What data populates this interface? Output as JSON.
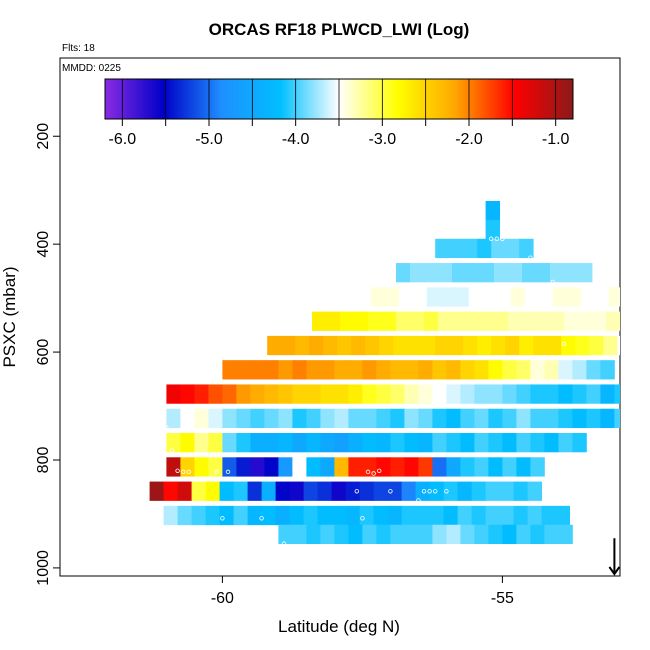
{
  "chart_data": {
    "type": "heatmap",
    "title": "ORCAS RF18 PLWCD_LWI (Log)",
    "annotations": {
      "flights": "Flts: 18",
      "date": "MMDD: 0225"
    },
    "xlabel": "Latitude (deg N)",
    "ylabel": "PSXC (mbar)",
    "xlim": [
      -62.9,
      -52.9
    ],
    "ylim": [
      1015,
      55
    ],
    "y_reversed": true,
    "x_ticks": [
      -60,
      -55
    ],
    "x_tick_labels": [
      "-60",
      "-55"
    ],
    "y_ticks": [
      200,
      400,
      600,
      800,
      1000
    ],
    "y_tick_labels": [
      "200",
      "400",
      "600",
      "800",
      "1000"
    ],
    "colorbar": {
      "range": [
        -6.2,
        -0.8
      ],
      "ticks": [
        -6.0,
        -5.0,
        -4.0,
        -3.0,
        -2.0,
        -1.0
      ],
      "tick_labels": [
        "-6.0",
        "-5.0",
        "-4.0",
        "-3.0",
        "-2.0",
        "-1.0"
      ],
      "colors": [
        "#8a2be2",
        "#0000c8",
        "#1e90ff",
        "#00bfff",
        "#ffffff",
        "#ffff00",
        "#ffa500",
        "#ff0000",
        "#8b1a1a"
      ]
    },
    "cell_size": {
      "dlat": 0.25,
      "dp": 35
    },
    "rows": [
      {
        "p": 320,
        "lat_start": -55.3,
        "values": [
          -4.3
        ]
      },
      {
        "p": 355,
        "lat_start": -55.3,
        "values": [
          -4.1
        ]
      },
      {
        "p": 390,
        "lat_start": -56.2,
        "values": [
          -4.0,
          -4.0,
          -4.0,
          -4.1,
          -3.9,
          -3.9,
          -4.0
        ]
      },
      {
        "p": 435,
        "lat_start": -56.9,
        "values": [
          -3.9,
          -3.8,
          -3.8,
          -3.8,
          -3.9,
          -3.9,
          -3.9,
          -3.8,
          -3.8,
          -3.9,
          -3.9,
          -3.8,
          -3.8,
          -3.8
        ]
      },
      {
        "p": 480,
        "lat_start": -57.6,
        "values": [
          -3.5,
          -3.4,
          -3.4,
          -3.5,
          -3.5,
          -3.6,
          -3.6,
          -3.6,
          -3.5,
          -3.5,
          -3.5,
          -3.4,
          -3.5,
          -3.5,
          -3.4,
          -3.4,
          -3.5,
          -3.5,
          -3.4
        ]
      },
      {
        "p": 525,
        "lat_start": -58.4,
        "values": [
          -2.7,
          -2.7,
          -2.8,
          -2.8,
          -2.9,
          -2.9,
          -3.1,
          -3.1,
          -3.0,
          -3.2,
          -3.2,
          -3.2,
          -3.2,
          -3.2,
          -3.3,
          -3.3,
          -3.3,
          -3.3,
          -3.4,
          -3.4,
          -3.4,
          -3.3,
          -3.2,
          -3.3,
          -3.2,
          -3.2,
          -3.3,
          -3.3
        ]
      },
      {
        "p": 570,
        "lat_start": -59.2,
        "values": [
          -2.2,
          -2.2,
          -2.3,
          -2.2,
          -2.3,
          -2.4,
          -2.3,
          -2.4,
          -2.5,
          -2.6,
          -2.6,
          -2.6,
          -2.5,
          -2.5,
          -2.6,
          -2.7,
          -2.6,
          -2.5,
          -2.7,
          -2.6,
          -2.6,
          -2.8,
          -2.9,
          -3.0,
          -3.2,
          -3.5,
          -3.8,
          -3.5
        ]
      },
      {
        "p": 615,
        "lat_start": -60.0,
        "values": [
          -2.0,
          -2.0,
          -2.0,
          -2.0,
          -2.1,
          -2.0,
          -2.1,
          -2.1,
          -2.2,
          -2.2,
          -2.1,
          -2.2,
          -2.3,
          -2.3,
          -2.2,
          -2.4,
          -2.3,
          -2.5,
          -2.6,
          -2.8,
          -3.0,
          -3.1,
          -3.4,
          -3.3,
          -3.6,
          -3.7,
          -3.9,
          -4.0
        ]
      },
      {
        "p": 660,
        "lat_start": -61.0,
        "values": [
          -1.4,
          -1.5,
          -1.6,
          -1.8,
          -1.9,
          -2.1,
          -2.2,
          -2.3,
          -2.4,
          -2.5,
          -2.5,
          -2.6,
          -2.6,
          -2.7,
          -2.9,
          -3.0,
          -3.1,
          -3.3,
          -3.4,
          -3.5,
          -3.6,
          -3.7,
          -3.8,
          -3.8,
          -3.9,
          -4.0,
          -4.1,
          -4.1,
          -4.2,
          -4.1,
          -4.0,
          -4.3,
          -4.1
        ]
      },
      {
        "p": 705,
        "lat_start": -61.0,
        "values": [
          -3.7,
          -3.5,
          -3.4,
          -3.6,
          -3.8,
          -3.9,
          -4.0,
          -3.9,
          -3.8,
          -4.1,
          -4.0,
          -3.8,
          -3.7,
          -3.9,
          -3.9,
          -4.0,
          -4.1,
          -3.8,
          -3.9,
          -4.1,
          -4.2,
          -4.0,
          -3.9,
          -4.1,
          -4.0,
          -3.8,
          -4.0,
          -4.0,
          -4.1,
          -4.2,
          -4.1,
          -4.3,
          -4.0,
          -4.1
        ]
      },
      {
        "p": 750,
        "lat_start": -61.0,
        "values": [
          -3.0,
          -2.8,
          -3.2,
          -3.0,
          -3.9,
          -4.1,
          -4.4,
          -4.4,
          -4.3,
          -4.5,
          -4.3,
          -4.5,
          -4.6,
          -4.4,
          -4.2,
          -4.3,
          -4.1,
          -4.2,
          -4.3,
          -4.0,
          -4.1,
          -4.2,
          -4.0,
          -4.1,
          -4.2,
          -4.0,
          -4.1,
          -4.2,
          -4.0,
          -4.1
        ]
      },
      {
        "p": 795,
        "lat_start": -61.0,
        "values": [
          -1.1,
          -2.5,
          -2.8,
          -3.0,
          -5.1,
          -5.4,
          -5.7,
          -5.5,
          -4.7,
          -3.5,
          -4.2,
          -4.5,
          -2.3,
          -1.6,
          -1.6,
          -1.5,
          -1.6,
          -1.5,
          -1.7,
          -5.0,
          -4.5,
          -4.1,
          -4.0,
          -4.2,
          -4.0,
          -4.2,
          -4.0
        ]
      },
      {
        "p": 840,
        "lat_start": -61.3,
        "values": [
          -0.9,
          -1.5,
          -1.2,
          -3.0,
          -2.8,
          -4.2,
          -4.1,
          -5.3,
          -4.4,
          -5.5,
          -5.6,
          -5.2,
          -5.3,
          -5.6,
          -5.4,
          -5.3,
          -5.2,
          -5.2,
          -4.9,
          -4.4,
          -4.2,
          -4.1,
          -4.3,
          -4.1,
          -4.0,
          -4.0,
          -4.1,
          -4.0
        ]
      },
      {
        "p": 885,
        "lat_start": -61.3,
        "values": [
          -3.5,
          -3.7,
          -3.9,
          -4.0,
          -4.1,
          -4.2,
          -4.0,
          -4.3,
          -4.2,
          -4.4,
          -4.2,
          -4.1,
          -4.2,
          -4.2,
          -4.3,
          -4.1,
          -4.2,
          -4.3,
          -4.1,
          -4.1,
          -4.1,
          -4.2,
          -4.0,
          -4.1,
          -4.0,
          -4.0,
          -4.1,
          -4.0,
          -4.1,
          -4.1
        ]
      },
      {
        "p": 920,
        "lat_start": -59.0,
        "values": [
          -4.0,
          -4.0,
          -4.1,
          -4.0,
          -4.1,
          -4.2,
          -4.0,
          -4.1,
          -4.0,
          -4.0,
          -4.0,
          -3.8,
          -3.7,
          -3.9,
          -4.0,
          -4.1,
          -4.2,
          -4.0,
          -4.1,
          -4.0,
          -4.0
        ]
      }
    ],
    "open_markers": [
      [
        -55.2,
        390
      ],
      [
        -55.1,
        390
      ],
      [
        -55.0,
        390
      ],
      [
        -54.5,
        425
      ],
      [
        -54.1,
        470
      ],
      [
        -56.9,
        475
      ],
      [
        -53.9,
        585
      ],
      [
        -61.2,
        693
      ],
      [
        -61.0,
        740
      ],
      [
        -60.9,
        782
      ],
      [
        -60.8,
        820
      ],
      [
        -60.7,
        822
      ],
      [
        -60.6,
        822
      ],
      [
        -61.2,
        822
      ],
      [
        -60.1,
        822
      ],
      [
        -59.9,
        822
      ],
      [
        -57.4,
        822
      ],
      [
        -57.3,
        825
      ],
      [
        -57.2,
        820
      ],
      [
        -56.4,
        858
      ],
      [
        -56.3,
        858
      ],
      [
        -56.2,
        858
      ],
      [
        -56.0,
        858
      ],
      [
        -57.0,
        858
      ],
      [
        -57.6,
        858
      ],
      [
        -56.5,
        875
      ],
      [
        -57.5,
        908
      ],
      [
        -60.0,
        908
      ],
      [
        -59.3,
        908
      ],
      [
        -61.1,
        930
      ],
      [
        -60.9,
        930
      ],
      [
        -61.2,
        946
      ],
      [
        -61.1,
        950
      ],
      [
        -61.0,
        950
      ],
      [
        -60.6,
        950
      ],
      [
        -60.2,
        950
      ],
      [
        -60.0,
        950
      ],
      [
        -59.9,
        950
      ],
      [
        -59.6,
        950
      ],
      [
        -59.4,
        950
      ],
      [
        -58.9,
        955
      ],
      [
        -58.7,
        970
      ],
      [
        -58.6,
        970
      ],
      [
        -58.0,
        978
      ],
      [
        -57.4,
        978
      ],
      [
        -57.3,
        975
      ],
      [
        -56.7,
        978
      ],
      [
        -56.6,
        975
      ],
      [
        -56.5,
        975
      ],
      [
        -56.3,
        975
      ],
      [
        -56.2,
        975
      ],
      [
        -56.0,
        978
      ],
      [
        -55.8,
        975
      ],
      [
        -55.6,
        978
      ],
      [
        -57.7,
        960
      ]
    ],
    "arrow_marker": {
      "lat": -53.0,
      "p_from": 945,
      "p_to": 1015,
      "direction": "down"
    }
  }
}
